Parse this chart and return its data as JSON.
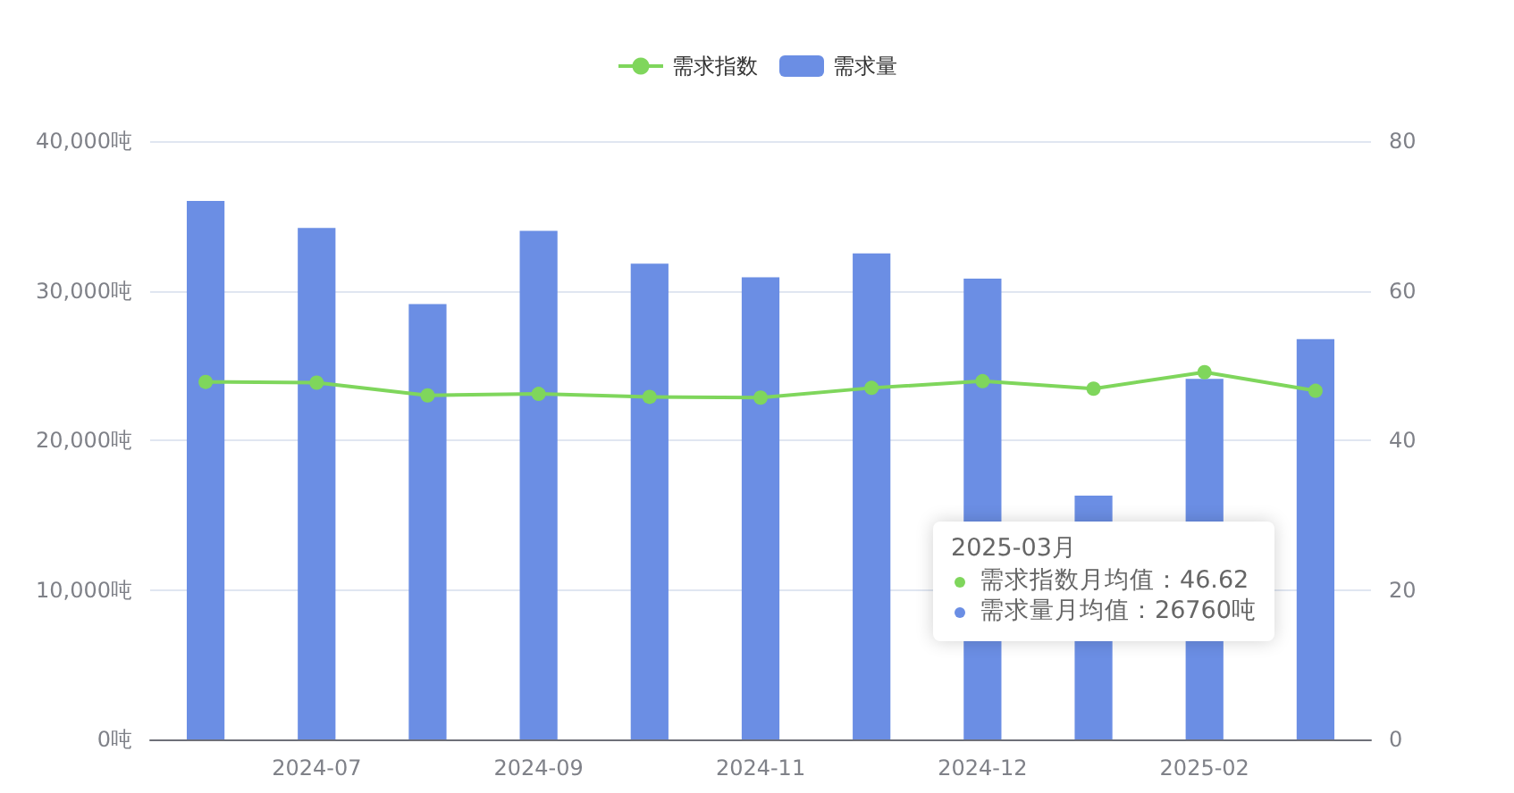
{
  "chart_data": {
    "type": "bar",
    "categories": [
      null,
      "2024-07",
      null,
      "2024-09",
      null,
      "2024-11",
      null,
      "2024-12",
      null,
      "2025-02",
      null
    ],
    "series": [
      {
        "name": "需求指数",
        "type": "line",
        "axis": "y2",
        "color": "#7fd65c",
        "values": [
          47.8,
          47.7,
          46.0,
          46.2,
          45.8,
          45.7,
          47.0,
          47.9,
          46.9,
          49.1,
          46.62
        ]
      },
      {
        "name": "需求量",
        "color": "#6b8ee4",
        "values": [
          36000,
          34200,
          29100,
          34000,
          31800,
          30900,
          32500,
          30800,
          16300,
          24100,
          26760
        ]
      }
    ],
    "ylim": [
      0,
      40000
    ],
    "yticks": [
      {
        "value": 0,
        "label": "0吨"
      },
      {
        "value": 10000,
        "label": "10,000吨"
      },
      {
        "value": 20000,
        "label": "20,000吨"
      },
      {
        "value": 30000,
        "label": "30,000吨"
      },
      {
        "value": 40000,
        "label": "40,000吨"
      }
    ],
    "y2lim": [
      0,
      80
    ],
    "y2ticks": [
      0,
      20,
      40,
      60,
      80
    ],
    "grid": "y",
    "legend": "top",
    "marker": "circle",
    "annotations": [
      "2025-03月",
      "需求指数月均值：46.62",
      "需求量月均值：26760吨"
    ]
  }
}
